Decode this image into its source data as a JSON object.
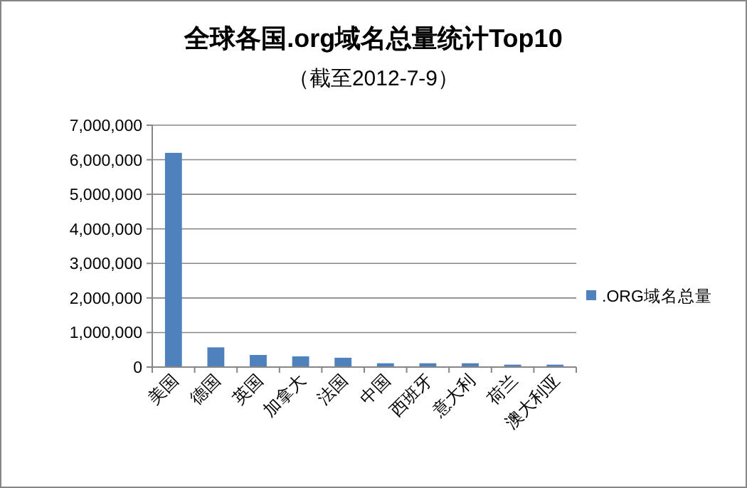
{
  "chart_data": {
    "type": "bar",
    "title": "全球各国.org域名总量统计Top10",
    "subtitle": "（截至2012-7-9）",
    "categories": [
      "美国",
      "德国",
      "英国",
      "加拿大",
      "法国",
      "中国",
      "西班牙",
      "意大利",
      "荷兰",
      "澳大利亚"
    ],
    "series": [
      {
        "name": ".ORG域名总量",
        "color": "#4f81bd",
        "values": [
          6200000,
          570000,
          350000,
          310000,
          270000,
          110000,
          110000,
          110000,
          70000,
          70000
        ]
      }
    ],
    "ylim": [
      0,
      7000000
    ],
    "yticks": [
      {
        "value": 0,
        "label": "0"
      },
      {
        "value": 1000000,
        "label": "1,000,000"
      },
      {
        "value": 2000000,
        "label": "2,000,000"
      },
      {
        "value": 3000000,
        "label": "3,000,000"
      },
      {
        "value": 4000000,
        "label": "4,000,000"
      },
      {
        "value": 5000000,
        "label": "5,000,000"
      },
      {
        "value": 6000000,
        "label": "6,000,000"
      },
      {
        "value": 7000000,
        "label": "7,000,000"
      }
    ],
    "grid": "y",
    "legend": "right"
  }
}
